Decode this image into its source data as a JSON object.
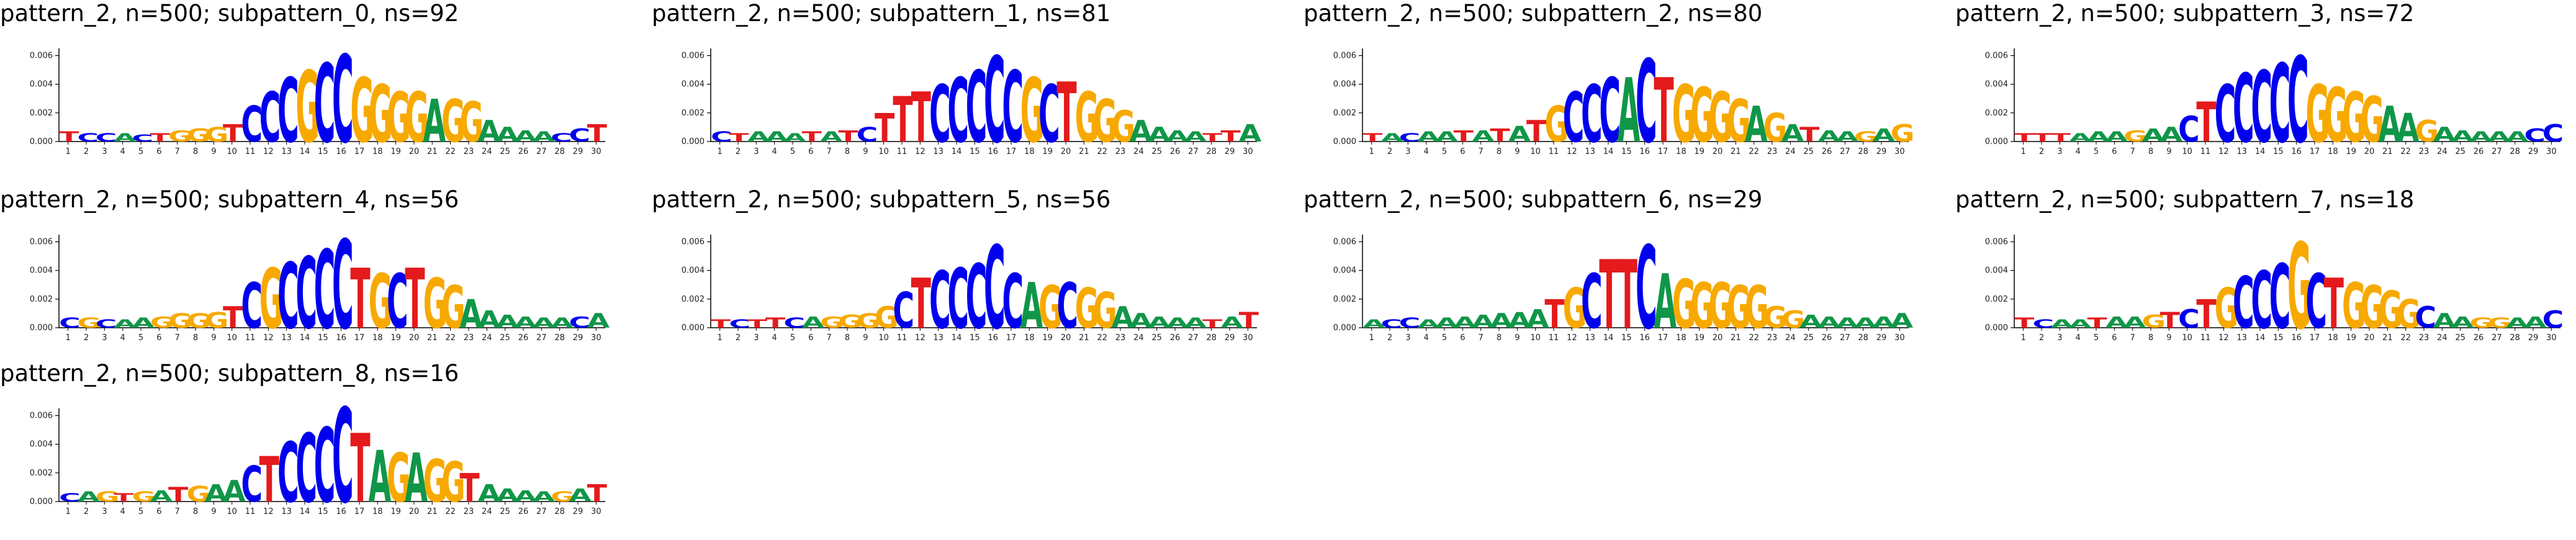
{
  "colors": {
    "A": "#109648",
    "C": "#0000ee",
    "G": "#f7a900",
    "T": "#e41a1c",
    "axis": "#000000"
  },
  "chart_data": [
    {
      "type": "sequence-logo",
      "title": "pattern_2, n=500; subpattern_0, ns=92",
      "ylim": [
        0,
        0.0065
      ],
      "yticks": [
        "0.000",
        "0.002",
        "0.004",
        "0.006"
      ],
      "positions": [
        1,
        2,
        3,
        4,
        5,
        6,
        7,
        8,
        9,
        10,
        11,
        12,
        13,
        14,
        15,
        16,
        17,
        18,
        19,
        20,
        21,
        22,
        23,
        24,
        25,
        26,
        27,
        28,
        29,
        30
      ],
      "consensus": [
        "T",
        "C",
        "C",
        "A",
        "C",
        "T",
        "G",
        "G",
        "G",
        "T",
        "C",
        "C",
        "C",
        "G",
        "C",
        "C",
        "G",
        "G",
        "G",
        "G",
        "A",
        "G",
        "G",
        "A",
        "A",
        "A",
        "A",
        "C",
        "C",
        "T"
      ],
      "heights": [
        0.0007,
        0.0006,
        0.0006,
        0.0006,
        0.0005,
        0.0006,
        0.0008,
        0.0009,
        0.001,
        0.0012,
        0.0025,
        0.0035,
        0.0045,
        0.005,
        0.0055,
        0.0061,
        0.0045,
        0.004,
        0.0035,
        0.0035,
        0.003,
        0.003,
        0.0028,
        0.0015,
        0.001,
        0.0008,
        0.0007,
        0.0006,
        0.0009,
        0.0012
      ]
    },
    {
      "type": "sequence-logo",
      "title": "pattern_2, n=500; subpattern_1, ns=81",
      "ylim": [
        0,
        0.0065
      ],
      "yticks": [
        "0.000",
        "0.002",
        "0.004",
        "0.006"
      ],
      "positions": [
        1,
        2,
        3,
        4,
        5,
        6,
        7,
        8,
        9,
        10,
        11,
        12,
        13,
        14,
        15,
        16,
        17,
        18,
        19,
        20,
        21,
        22,
        23,
        24,
        25,
        26,
        27,
        28,
        29,
        30
      ],
      "consensus": [
        "C",
        "T",
        "A",
        "A",
        "A",
        "T",
        "A",
        "T",
        "C",
        "T",
        "T",
        "T",
        "C",
        "C",
        "C",
        "C",
        "C",
        "G",
        "C",
        "T",
        "G",
        "G",
        "G",
        "A",
        "A",
        "A",
        "A",
        "T",
        "T",
        "A"
      ],
      "heights": [
        0.0007,
        0.0006,
        0.0007,
        0.0007,
        0.0006,
        0.0007,
        0.0007,
        0.0008,
        0.001,
        0.002,
        0.0032,
        0.0035,
        0.004,
        0.0045,
        0.005,
        0.006,
        0.005,
        0.0045,
        0.004,
        0.0042,
        0.0035,
        0.003,
        0.0022,
        0.0015,
        0.001,
        0.0008,
        0.0007,
        0.0006,
        0.0008,
        0.0012
      ]
    },
    {
      "type": "sequence-logo",
      "title": "pattern_2, n=500; subpattern_2, ns=80",
      "ylim": [
        0,
        0.0065
      ],
      "yticks": [
        "0.000",
        "0.002",
        "0.004",
        "0.006"
      ],
      "positions": [
        1,
        2,
        3,
        4,
        5,
        6,
        7,
        8,
        9,
        10,
        11,
        12,
        13,
        14,
        15,
        16,
        17,
        18,
        19,
        20,
        21,
        22,
        23,
        24,
        25,
        26,
        27,
        28,
        29,
        30
      ],
      "consensus": [
        "T",
        "A",
        "C",
        "A",
        "A",
        "T",
        "A",
        "T",
        "A",
        "T",
        "G",
        "C",
        "C",
        "C",
        "A",
        "C",
        "T",
        "G",
        "G",
        "G",
        "G",
        "A",
        "G",
        "A",
        "T",
        "A",
        "A",
        "G",
        "A",
        "G"
      ],
      "heights": [
        0.0006,
        0.0006,
        0.0006,
        0.0007,
        0.0007,
        0.0008,
        0.0008,
        0.0009,
        0.0011,
        0.0015,
        0.0025,
        0.0035,
        0.004,
        0.0045,
        0.0045,
        0.0058,
        0.0045,
        0.004,
        0.0038,
        0.0035,
        0.003,
        0.0025,
        0.002,
        0.0012,
        0.001,
        0.0008,
        0.0007,
        0.0007,
        0.0009,
        0.0012
      ]
    },
    {
      "type": "sequence-logo",
      "title": "pattern_2, n=500; subpattern_3, ns=72",
      "ylim": [
        0,
        0.0065
      ],
      "yticks": [
        "0.000",
        "0.002",
        "0.004",
        "0.006"
      ],
      "positions": [
        1,
        2,
        3,
        4,
        5,
        6,
        7,
        8,
        9,
        10,
        11,
        12,
        13,
        14,
        15,
        16,
        17,
        18,
        19,
        20,
        21,
        22,
        23,
        24,
        25,
        26,
        27,
        28,
        29,
        30
      ],
      "consensus": [
        "T",
        "T",
        "T",
        "A",
        "A",
        "A",
        "G",
        "A",
        "A",
        "C",
        "T",
        "C",
        "C",
        "C",
        "C",
        "C",
        "G",
        "G",
        "G",
        "G",
        "A",
        "A",
        "G",
        "A",
        "A",
        "A",
        "A",
        "A",
        "C",
        "C"
      ],
      "heights": [
        0.0006,
        0.0006,
        0.0006,
        0.0006,
        0.0007,
        0.0007,
        0.0008,
        0.0009,
        0.001,
        0.0018,
        0.0028,
        0.004,
        0.0048,
        0.005,
        0.0055,
        0.006,
        0.004,
        0.0038,
        0.0035,
        0.0032,
        0.0025,
        0.002,
        0.0015,
        0.001,
        0.0008,
        0.0007,
        0.0007,
        0.0007,
        0.0009,
        0.0012
      ]
    },
    {
      "type": "sequence-logo",
      "title": "pattern_2, n=500; subpattern_4, ns=56",
      "ylim": [
        0,
        0.0065
      ],
      "yticks": [
        "0.000",
        "0.002",
        "0.004",
        "0.006"
      ],
      "positions": [
        1,
        2,
        3,
        4,
        5,
        6,
        7,
        8,
        9,
        10,
        11,
        12,
        13,
        14,
        15,
        16,
        17,
        18,
        19,
        20,
        21,
        22,
        23,
        24,
        25,
        26,
        27,
        28,
        29,
        30
      ],
      "consensus": [
        "C",
        "G",
        "C",
        "A",
        "A",
        "G",
        "G",
        "G",
        "G",
        "T",
        "C",
        "G",
        "C",
        "C",
        "C",
        "C",
        "T",
        "G",
        "C",
        "T",
        "G",
        "G",
        "A",
        "A",
        "A",
        "A",
        "A",
        "A",
        "C",
        "A"
      ],
      "heights": [
        0.0007,
        0.0007,
        0.0006,
        0.0006,
        0.0007,
        0.0008,
        0.001,
        0.001,
        0.0011,
        0.0015,
        0.0032,
        0.0042,
        0.0046,
        0.005,
        0.0055,
        0.0062,
        0.0042,
        0.0038,
        0.0038,
        0.0042,
        0.0035,
        0.003,
        0.002,
        0.0012,
        0.0009,
        0.0008,
        0.0007,
        0.0007,
        0.0008,
        0.001
      ]
    },
    {
      "type": "sequence-logo",
      "title": "pattern_2, n=500; subpattern_5, ns=56",
      "ylim": [
        0,
        0.0065
      ],
      "yticks": [
        "0.000",
        "0.002",
        "0.004",
        "0.006"
      ],
      "positions": [
        1,
        2,
        3,
        4,
        5,
        6,
        7,
        8,
        9,
        10,
        11,
        12,
        13,
        14,
        15,
        16,
        17,
        18,
        19,
        20,
        21,
        22,
        23,
        24,
        25,
        26,
        27,
        28,
        29,
        30
      ],
      "consensus": [
        "T",
        "C",
        "T",
        "T",
        "C",
        "A",
        "G",
        "G",
        "G",
        "G",
        "C",
        "T",
        "C",
        "C",
        "C",
        "C",
        "C",
        "A",
        "G",
        "C",
        "G",
        "G",
        "A",
        "A",
        "A",
        "A",
        "A",
        "T",
        "A",
        "T"
      ],
      "heights": [
        0.0006,
        0.0006,
        0.0006,
        0.0007,
        0.0007,
        0.0008,
        0.0008,
        0.0009,
        0.001,
        0.0015,
        0.0025,
        0.0035,
        0.004,
        0.0042,
        0.0045,
        0.0058,
        0.0038,
        0.0032,
        0.003,
        0.0032,
        0.0028,
        0.0025,
        0.0015,
        0.001,
        0.0008,
        0.0007,
        0.0007,
        0.0006,
        0.0008,
        0.0011
      ]
    },
    {
      "type": "sequence-logo",
      "title": "pattern_2, n=500; subpattern_6, ns=29",
      "ylim": [
        0,
        0.0065
      ],
      "yticks": [
        "0.000",
        "0.002",
        "0.004",
        "0.006"
      ],
      "positions": [
        1,
        2,
        3,
        4,
        5,
        6,
        7,
        8,
        9,
        10,
        11,
        12,
        13,
        14,
        15,
        16,
        17,
        18,
        19,
        20,
        21,
        22,
        23,
        24,
        25,
        26,
        27,
        28,
        29,
        30
      ],
      "consensus": [
        "A",
        "C",
        "C",
        "A",
        "A",
        "A",
        "A",
        "A",
        "A",
        "A",
        "T",
        "G",
        "C",
        "T",
        "T",
        "C",
        "A",
        "G",
        "G",
        "G",
        "G",
        "G",
        "G",
        "G",
        "A",
        "A",
        "A",
        "A",
        "A",
        "A"
      ],
      "heights": [
        0.0006,
        0.0006,
        0.0007,
        0.0006,
        0.0007,
        0.0008,
        0.0009,
        0.001,
        0.0011,
        0.0013,
        0.002,
        0.0028,
        0.0038,
        0.0048,
        0.0048,
        0.0058,
        0.0038,
        0.0034,
        0.0032,
        0.0032,
        0.003,
        0.003,
        0.0015,
        0.0012,
        0.0009,
        0.0008,
        0.0007,
        0.0007,
        0.0008,
        0.001
      ]
    },
    {
      "type": "sequence-logo",
      "title": "pattern_2, n=500; subpattern_7, ns=18",
      "ylim": [
        0,
        0.0065
      ],
      "yticks": [
        "0.000",
        "0.002",
        "0.004",
        "0.006"
      ],
      "positions": [
        1,
        2,
        3,
        4,
        5,
        6,
        7,
        8,
        9,
        10,
        11,
        12,
        13,
        14,
        15,
        16,
        17,
        18,
        19,
        20,
        21,
        22,
        23,
        24,
        25,
        26,
        27,
        28,
        29,
        30
      ],
      "consensus": [
        "T",
        "C",
        "A",
        "A",
        "T",
        "A",
        "A",
        "G",
        "T",
        "C",
        "T",
        "G",
        "C",
        "C",
        "C",
        "G",
        "C",
        "T",
        "G",
        "G",
        "G",
        "G",
        "C",
        "A",
        "A",
        "G",
        "G",
        "A",
        "A",
        "C"
      ],
      "heights": [
        0.0007,
        0.0006,
        0.0006,
        0.0006,
        0.0007,
        0.0008,
        0.0008,
        0.0009,
        0.0011,
        0.0013,
        0.002,
        0.0028,
        0.0036,
        0.004,
        0.0045,
        0.006,
        0.0038,
        0.0035,
        0.0032,
        0.003,
        0.0026,
        0.002,
        0.0015,
        0.001,
        0.0008,
        0.0007,
        0.0007,
        0.0007,
        0.0008,
        0.0012
      ]
    },
    {
      "type": "sequence-logo",
      "title": "pattern_2, n=500; subpattern_8, ns=16",
      "ylim": [
        0,
        0.0065
      ],
      "yticks": [
        "0.000",
        "0.002",
        "0.004",
        "0.006"
      ],
      "positions": [
        1,
        2,
        3,
        4,
        5,
        6,
        7,
        8,
        9,
        10,
        11,
        12,
        13,
        14,
        15,
        16,
        17,
        18,
        19,
        20,
        21,
        22,
        23,
        24,
        25,
        26,
        27,
        28,
        29,
        30
      ],
      "consensus": [
        "C",
        "A",
        "G",
        "T",
        "G",
        "A",
        "T",
        "G",
        "A",
        "A",
        "C",
        "T",
        "C",
        "C",
        "C",
        "C",
        "T",
        "A",
        "G",
        "A",
        "G",
        "G",
        "T",
        "A",
        "A",
        "A",
        "A",
        "G",
        "A",
        "T"
      ],
      "heights": [
        0.0006,
        0.0007,
        0.0007,
        0.0006,
        0.0007,
        0.0008,
        0.001,
        0.0011,
        0.0012,
        0.0015,
        0.0025,
        0.0032,
        0.0042,
        0.0048,
        0.0052,
        0.0066,
        0.0048,
        0.0036,
        0.0034,
        0.0034,
        0.003,
        0.0028,
        0.002,
        0.0012,
        0.0009,
        0.0008,
        0.0007,
        0.0007,
        0.0009,
        0.0012
      ]
    }
  ]
}
